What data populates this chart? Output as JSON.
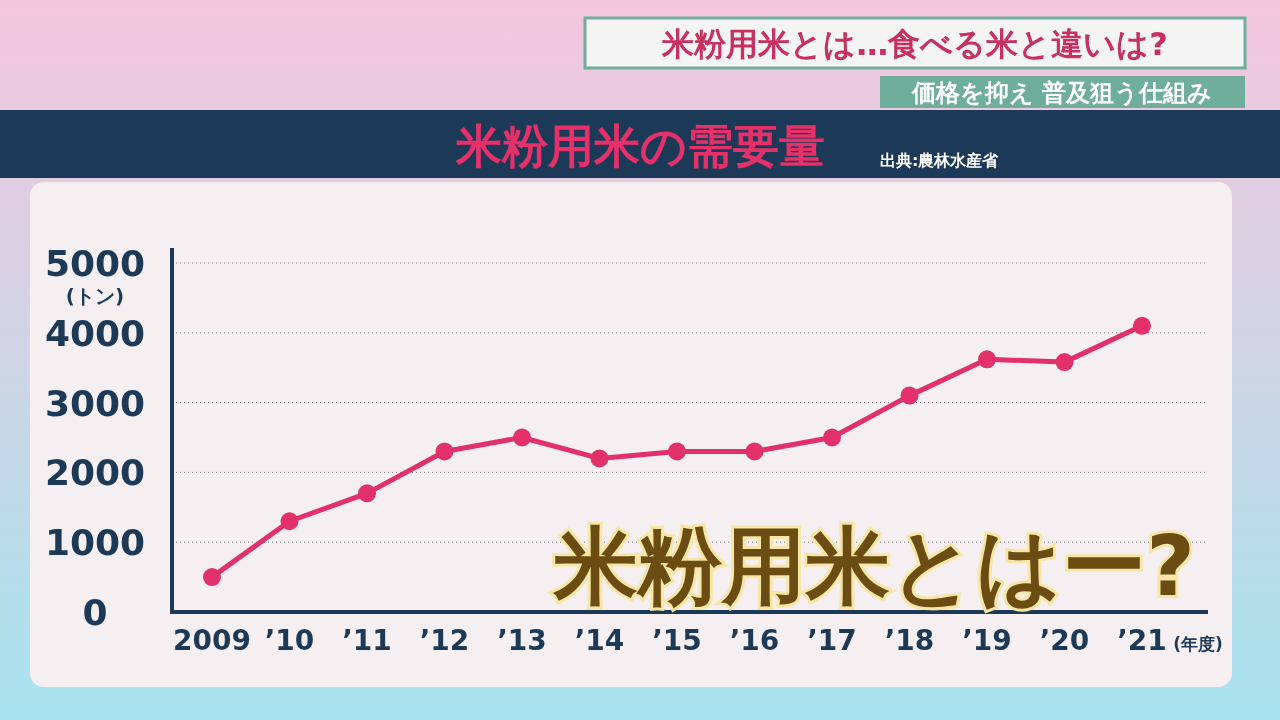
{
  "chart_data": {
    "type": "line",
    "title": "米粉用米の需要量",
    "ylabel": "(トン)",
    "xlabel": "(年度)",
    "annotations": [
      "出典:農林水産省",
      "米粉用米とは…食べる米と違いは?",
      "価格を抑え 普及狙う仕組み",
      "米粉用米とはー?"
    ],
    "categories": [
      "2009",
      "’10",
      "’11",
      "’12",
      "’13",
      "’14",
      "’15",
      "’16",
      "’17",
      "’18",
      "’19",
      "’20",
      "’21"
    ],
    "values": [
      500,
      1300,
      1700,
      2300,
      2500,
      2200,
      2300,
      2300,
      2500,
      3100,
      3620,
      3580,
      4100
    ],
    "color": "#e2306b",
    "ylim": [
      0,
      5000
    ],
    "yticks": [
      0,
      1000,
      2000,
      3000,
      4000,
      5000
    ],
    "grid": "y",
    "marker": "circle",
    "line_style": "solid"
  }
}
